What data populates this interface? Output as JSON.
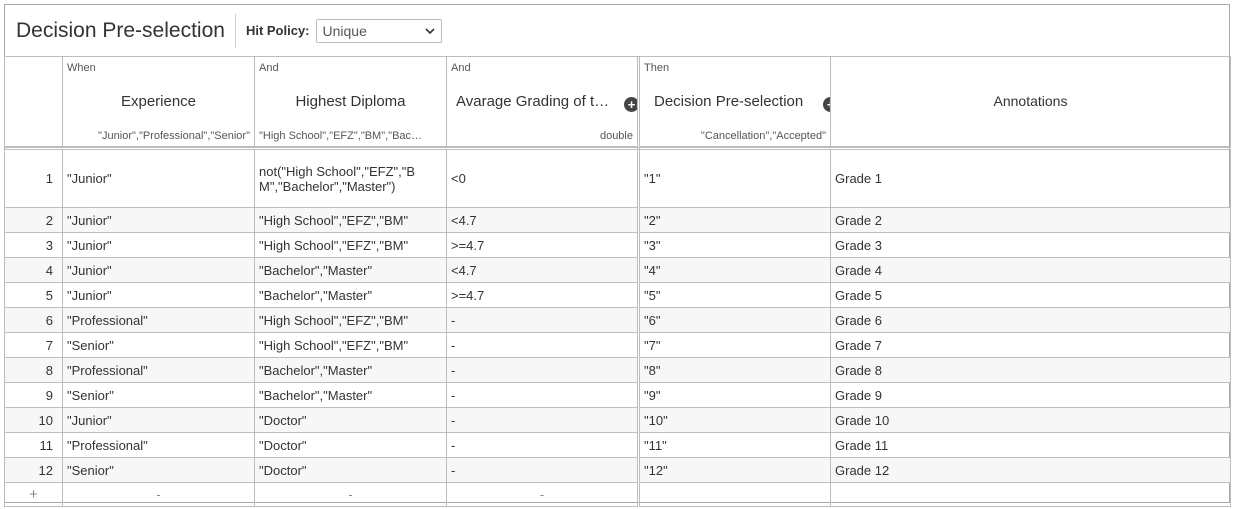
{
  "title": "Decision Pre-selection",
  "hit_policy": {
    "label": "Hit Policy:",
    "value": "Unique"
  },
  "columns": [
    {
      "kind": "When",
      "name": "Experience",
      "type": "\"Junior\",\"Professional\",\"Senior\""
    },
    {
      "kind": "And",
      "name": "Highest Diploma",
      "type": "\"High School\",\"EFZ\",\"BM\",\"Bac…"
    },
    {
      "kind": "And",
      "name": "Avarage Grading of t…",
      "type": "double"
    },
    {
      "kind": "Then",
      "name": "Decision Pre-selection",
      "type": "\"Cancellation\",\"Accepted\""
    },
    {
      "kind": "",
      "name": "Annotations",
      "type": ""
    }
  ],
  "rows": [
    {
      "idx": "1",
      "experience": "\"Junior\"",
      "diploma": "not(\"High School\",\"EFZ\",\"BM\",\"Bachelor\",\"Master\")",
      "grading": "<0",
      "decision": "\"1\"",
      "annotation": "Grade 1"
    },
    {
      "idx": "2",
      "experience": "\"Junior\"",
      "diploma": "\"High School\",\"EFZ\",\"BM\"",
      "grading": "<4.7",
      "decision": "\"2\"",
      "annotation": "Grade 2"
    },
    {
      "idx": "3",
      "experience": "\"Junior\"",
      "diploma": "\"High School\",\"EFZ\",\"BM\"",
      "grading": ">=4.7",
      "decision": "\"3\"",
      "annotation": "Grade 3"
    },
    {
      "idx": "4",
      "experience": "\"Junior\"",
      "diploma": "\"Bachelor\",\"Master\"",
      "grading": "<4.7",
      "decision": "\"4\"",
      "annotation": "Grade 4"
    },
    {
      "idx": "5",
      "experience": "\"Junior\"",
      "diploma": "\"Bachelor\",\"Master\"",
      "grading": ">=4.7",
      "decision": "\"5\"",
      "annotation": "Grade 5"
    },
    {
      "idx": "6",
      "experience": "\"Professional\"",
      "diploma": "\"High School\",\"EFZ\",\"BM\"",
      "grading": "-",
      "decision": "\"6\"",
      "annotation": "Grade 6"
    },
    {
      "idx": "7",
      "experience": "\"Senior\"",
      "diploma": "\"High School\",\"EFZ\",\"BM\"",
      "grading": "-",
      "decision": "\"7\"",
      "annotation": "Grade 7"
    },
    {
      "idx": "8",
      "experience": "\"Professional\"",
      "diploma": "\"Bachelor\",\"Master\"",
      "grading": "-",
      "decision": "\"8\"",
      "annotation": "Grade 8"
    },
    {
      "idx": "9",
      "experience": "\"Senior\"",
      "diploma": "\"Bachelor\",\"Master\"",
      "grading": "-",
      "decision": "\"9\"",
      "annotation": "Grade 9"
    },
    {
      "idx": "10",
      "experience": "\"Junior\"",
      "diploma": "\"Doctor\"",
      "grading": "-",
      "decision": "\"10\"",
      "annotation": "Grade 10"
    },
    {
      "idx": "11",
      "experience": "\"Professional\"",
      "diploma": "\"Doctor\"",
      "grading": "-",
      "decision": "\"11\"",
      "annotation": "Grade 11"
    },
    {
      "idx": "12",
      "experience": "\"Senior\"",
      "diploma": "\"Doctor\"",
      "grading": "-",
      "decision": "\"12\"",
      "annotation": "Grade 12"
    }
  ],
  "add_row": {
    "plus": "+",
    "dash": "-"
  },
  "icons": {
    "add_column": "plus-circle-icon",
    "select_chevron": "chevron-down-icon"
  }
}
